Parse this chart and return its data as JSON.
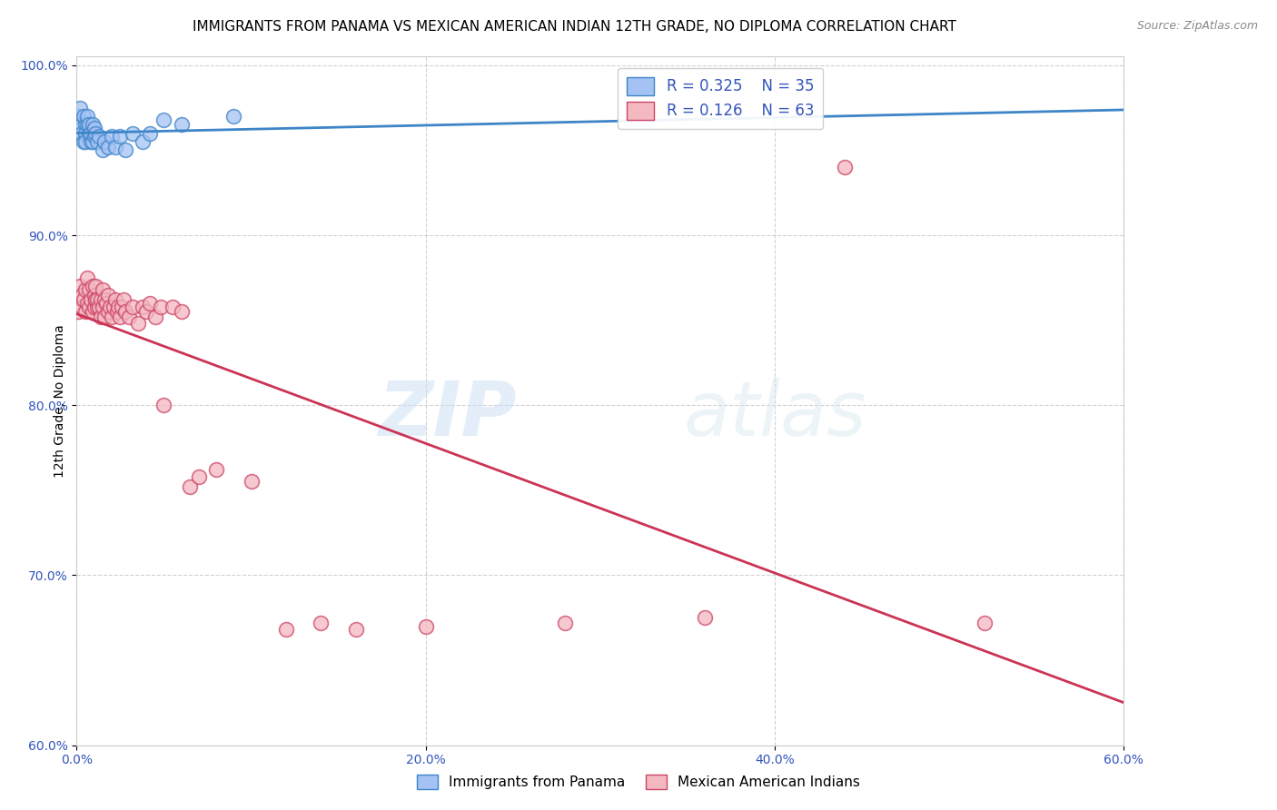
{
  "title": "IMMIGRANTS FROM PANAMA VS MEXICAN AMERICAN INDIAN 12TH GRADE, NO DIPLOMA CORRELATION CHART",
  "source": "Source: ZipAtlas.com",
  "ylabel": "12th Grade, No Diploma",
  "xlim": [
    0.0,
    0.6
  ],
  "ylim": [
    0.6,
    1.005
  ],
  "xtick_labels": [
    "0.0%",
    "20.0%",
    "40.0%",
    "60.0%"
  ],
  "xtick_values": [
    0.0,
    0.2,
    0.4,
    0.6
  ],
  "ytick_labels": [
    "100.0%",
    "90.0%",
    "80.0%",
    "70.0%",
    "60.0%"
  ],
  "ytick_values": [
    1.0,
    0.9,
    0.8,
    0.7,
    0.6
  ],
  "blue_R": "0.325",
  "blue_N": "35",
  "pink_R": "0.126",
  "pink_N": "63",
  "legend_label_blue": "Immigrants from Panama",
  "legend_label_pink": "Mexican American Indians",
  "blue_color": "#a4c2f4",
  "pink_color": "#f4b8c1",
  "blue_edge_color": "#3d85c8",
  "pink_edge_color": "#cc4466",
  "blue_line_color": "#3d85c8",
  "pink_line_color": "#cc3355",
  "watermark_zip": "ZIP",
  "watermark_atlas": "atlas",
  "blue_x": [
    0.001,
    0.002,
    0.003,
    0.003,
    0.004,
    0.004,
    0.005,
    0.005,
    0.005,
    0.006,
    0.006,
    0.007,
    0.007,
    0.008,
    0.008,
    0.009,
    0.009,
    0.01,
    0.01,
    0.011,
    0.012,
    0.013,
    0.015,
    0.016,
    0.018,
    0.02,
    0.022,
    0.025,
    0.028,
    0.032,
    0.038,
    0.042,
    0.05,
    0.06,
    0.09
  ],
  "blue_y": [
    0.97,
    0.975,
    0.965,
    0.96,
    0.955,
    0.97,
    0.965,
    0.96,
    0.955,
    0.965,
    0.97,
    0.96,
    0.965,
    0.955,
    0.96,
    0.955,
    0.965,
    0.958,
    0.963,
    0.96,
    0.955,
    0.958,
    0.95,
    0.955,
    0.952,
    0.958,
    0.952,
    0.958,
    0.95,
    0.96,
    0.955,
    0.96,
    0.968,
    0.965,
    0.97
  ],
  "pink_x": [
    0.001,
    0.002,
    0.003,
    0.003,
    0.004,
    0.005,
    0.005,
    0.006,
    0.006,
    0.007,
    0.007,
    0.008,
    0.009,
    0.009,
    0.01,
    0.01,
    0.011,
    0.011,
    0.012,
    0.012,
    0.013,
    0.014,
    0.014,
    0.015,
    0.015,
    0.016,
    0.016,
    0.017,
    0.018,
    0.018,
    0.019,
    0.02,
    0.021,
    0.022,
    0.023,
    0.024,
    0.025,
    0.026,
    0.027,
    0.028,
    0.03,
    0.032,
    0.035,
    0.038,
    0.04,
    0.042,
    0.045,
    0.048,
    0.05,
    0.055,
    0.06,
    0.065,
    0.07,
    0.08,
    0.1,
    0.12,
    0.14,
    0.16,
    0.2,
    0.28,
    0.36,
    0.44,
    0.52
  ],
  "pink_y": [
    0.855,
    0.87,
    0.865,
    0.858,
    0.862,
    0.868,
    0.855,
    0.875,
    0.86,
    0.868,
    0.858,
    0.862,
    0.87,
    0.855,
    0.865,
    0.858,
    0.862,
    0.87,
    0.858,
    0.862,
    0.858,
    0.852,
    0.862,
    0.858,
    0.868,
    0.852,
    0.862,
    0.86,
    0.855,
    0.865,
    0.858,
    0.852,
    0.858,
    0.862,
    0.855,
    0.858,
    0.852,
    0.858,
    0.862,
    0.855,
    0.852,
    0.858,
    0.848,
    0.858,
    0.855,
    0.86,
    0.852,
    0.858,
    0.8,
    0.858,
    0.855,
    0.752,
    0.758,
    0.762,
    0.755,
    0.668,
    0.672,
    0.668,
    0.67,
    0.672,
    0.675,
    0.94,
    0.672
  ],
  "title_fontsize": 11,
  "tick_fontsize": 10,
  "legend_fontsize": 12
}
